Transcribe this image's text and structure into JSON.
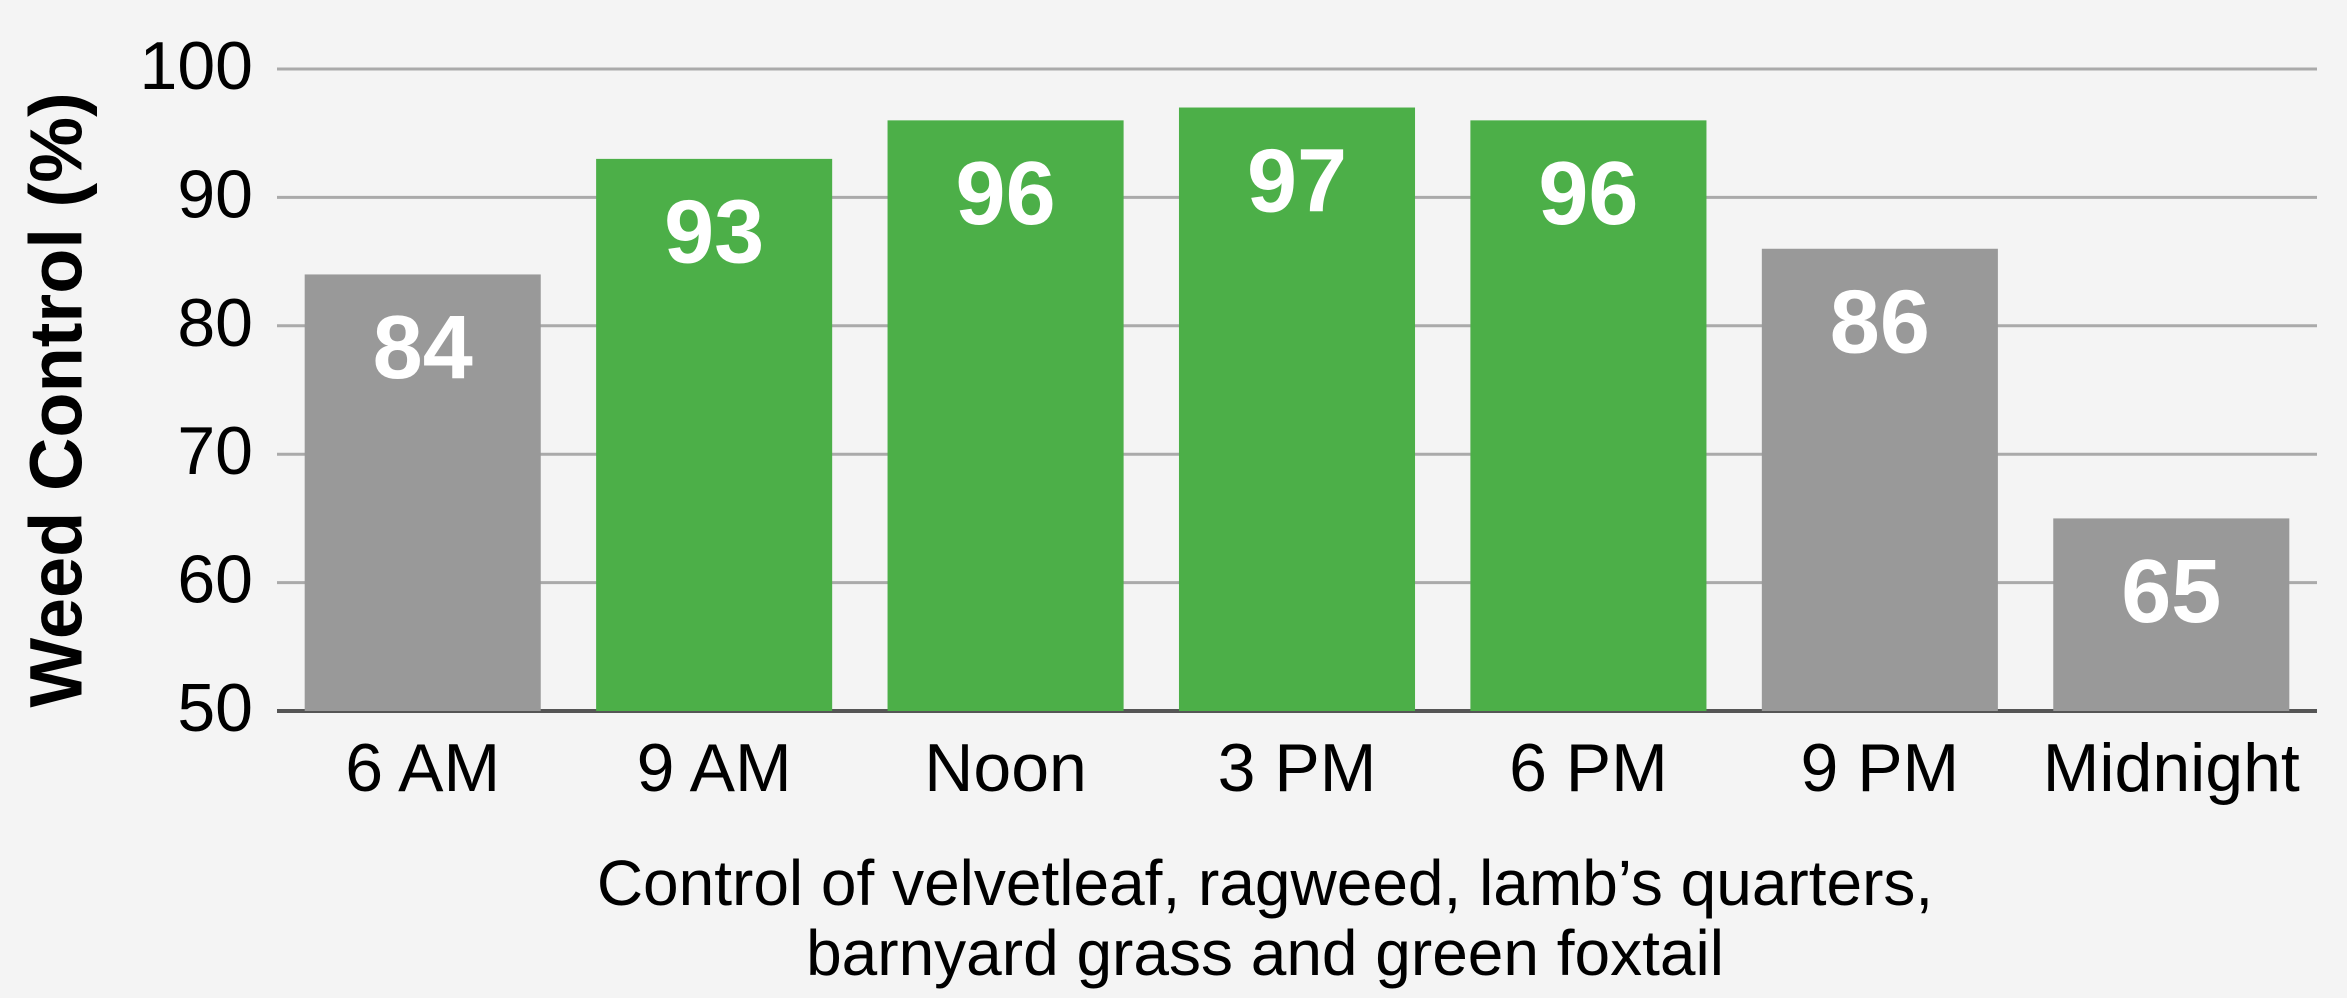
{
  "chart_data": {
    "type": "bar",
    "ylabel": "Weed Control (%)",
    "xlabel": [
      "Control of velvetleaf, ragweed, lamb’s quarters,",
      "barnyard grass and green foxtail"
    ],
    "categories": [
      "6 AM",
      "9 AM",
      "Noon",
      "3 PM",
      "6 PM",
      "9 PM",
      "Midnight"
    ],
    "values": [
      84,
      93,
      96,
      97,
      96,
      86,
      65
    ],
    "colors": [
      "#999999",
      "#4caf48",
      "#4caf48",
      "#4caf48",
      "#4caf48",
      "#999999",
      "#999999"
    ],
    "ylim": [
      50,
      100
    ],
    "yticks": [
      50,
      60,
      70,
      80,
      90,
      100
    ],
    "grid": true
  }
}
